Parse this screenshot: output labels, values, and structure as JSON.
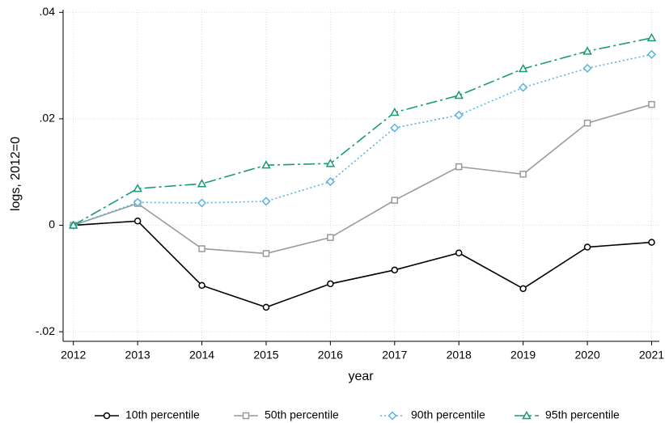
{
  "chart_data": {
    "type": "line",
    "ylabel": "logs, 2012=0",
    "xlabel": "year",
    "x": [
      2012,
      2013,
      2014,
      2015,
      2016,
      2017,
      2018,
      2019,
      2020,
      2021
    ],
    "series": [
      {
        "name": "10th percentile",
        "color": "#000000",
        "marker": "circle",
        "dash": "solid",
        "values": [
          0,
          0.0008,
          -0.0113,
          -0.0154,
          -0.011,
          -0.0084,
          -0.0052,
          -0.0119,
          -0.0041,
          -0.0032
        ]
      },
      {
        "name": "50th percentile",
        "color": "#9a9a9a",
        "marker": "square",
        "dash": "solid",
        "values": [
          0,
          0.0041,
          -0.0044,
          -0.0053,
          -0.0023,
          0.0047,
          0.011,
          0.0096,
          0.0192,
          0.0227
        ]
      },
      {
        "name": "90th percentile",
        "color": "#5ab4de",
        "marker": "diamond",
        "dash": "dot",
        "values": [
          0,
          0.0043,
          0.0042,
          0.0045,
          0.0082,
          0.0183,
          0.0207,
          0.0259,
          0.0295,
          0.0321
        ]
      },
      {
        "name": "95th percentile",
        "color": "#1a9a76",
        "marker": "triangle",
        "dash": "dashdot",
        "values": [
          0,
          0.0069,
          0.0078,
          0.0113,
          0.0116,
          0.0212,
          0.0244,
          0.0294,
          0.0327,
          0.0352
        ]
      }
    ],
    "xlim": [
      2011.84,
      2021.12
    ],
    "ylim": [
      -0.0218,
      0.0405
    ],
    "xticks": [
      2012,
      2013,
      2014,
      2015,
      2016,
      2017,
      2018,
      2019,
      2020,
      2021
    ],
    "yticks": [
      {
        "value": -0.02,
        "label": "-.02"
      },
      {
        "value": 0,
        "label": "0"
      },
      {
        "value": 0.02,
        "label": ".02"
      },
      {
        "value": 0.04,
        "label": ".04"
      }
    ],
    "grid": true,
    "legend": "bottom"
  }
}
